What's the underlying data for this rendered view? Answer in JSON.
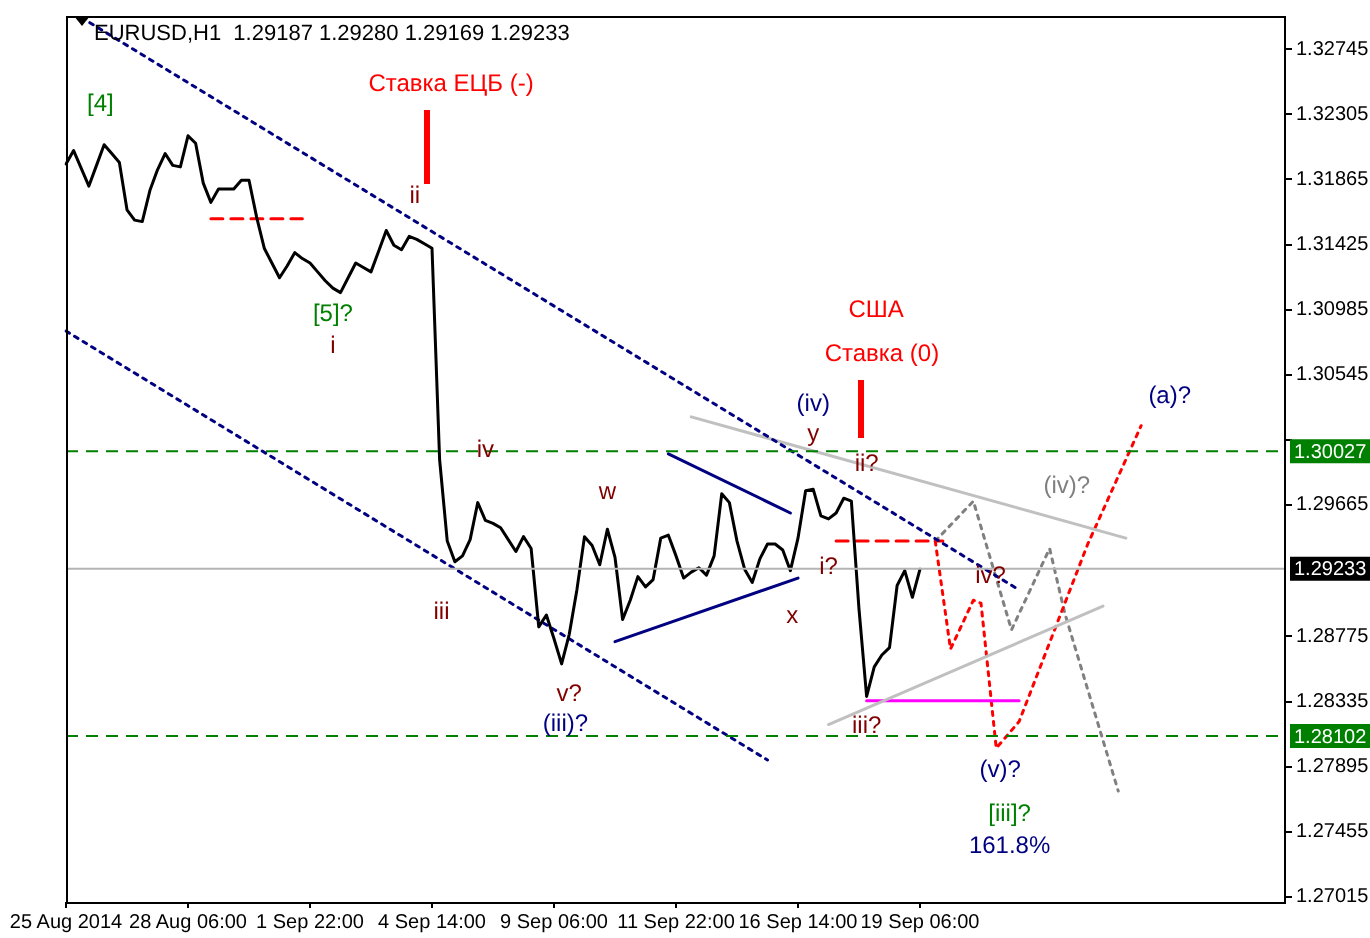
{
  "chart_data": {
    "type": "line",
    "title": "EURUSD,H1  1.29187 1.29280 1.29169 1.29233",
    "categories": [
      "25 Aug 2014",
      null,
      null,
      null,
      null,
      null,
      null,
      null,
      null,
      null,
      null,
      null,
      null,
      null,
      null,
      null,
      "28 Aug 06:00",
      null,
      null,
      null,
      null,
      null,
      null,
      null,
      null,
      null,
      null,
      null,
      null,
      null,
      null,
      null,
      "1 Sep 22:00",
      null,
      null,
      null,
      null,
      null,
      null,
      null,
      null,
      null,
      null,
      null,
      null,
      null,
      null,
      null,
      "4 Sep 14:00",
      null,
      null,
      null,
      null,
      null,
      null,
      null,
      null,
      null,
      null,
      null,
      null,
      null,
      null,
      null,
      "9 Sep 06:00",
      null,
      null,
      null,
      null,
      null,
      null,
      null,
      null,
      null,
      null,
      null,
      null,
      null,
      null,
      null,
      "11 Sep 22:00",
      null,
      null,
      null,
      null,
      null,
      null,
      null,
      null,
      null,
      null,
      null,
      null,
      null,
      null,
      null,
      "16 Sep 14:00",
      null,
      null,
      null,
      null,
      null,
      null,
      null,
      null,
      null,
      null,
      null,
      null,
      null,
      null,
      null,
      "19 Sep 06:00",
      null,
      null,
      null,
      null,
      null,
      null,
      null,
      null,
      null,
      null,
      null,
      null,
      null,
      null,
      null,
      null,
      null,
      null,
      null,
      null,
      null,
      null,
      null,
      null,
      null,
      null,
      null,
      null,
      null,
      null,
      null,
      null,
      null,
      null,
      null,
      null,
      null,
      null,
      null,
      null,
      null,
      null,
      null,
      null,
      null,
      null,
      null,
      null
    ],
    "ylim": [
      1.2698,
      1.3297
    ],
    "yticks": [
      1.27015,
      1.27455,
      1.27895,
      1.28335,
      1.28775,
      1.29665,
      {
        "value": 1.30105,
        "label": null
      },
      1.30545,
      1.30985,
      1.31425,
      1.31865,
      1.32305,
      1.32745
    ],
    "grid": false,
    "legend": false,
    "marker": "none",
    "series": [
      {
        "type": "line",
        "color": "#000000",
        "line_style": "solid",
        "values": [
          1.3197,
          1.3206,
          1.3194,
          1.3182,
          1.3196,
          1.321,
          1.3204,
          1.3198,
          1.3166,
          1.3159,
          1.3158,
          1.3179,
          1.3193,
          1.3204,
          1.3196,
          1.3195,
          1.3216,
          1.3211,
          1.3184,
          1.3171,
          1.318,
          1.318,
          1.318,
          1.3186,
          1.3186,
          1.3161,
          1.314,
          1.313,
          1.312,
          1.3128,
          1.3137,
          1.3133,
          1.313,
          1.3124,
          1.3118,
          1.3113,
          1.311,
          1.312,
          1.313,
          1.3127,
          1.3124,
          1.3138,
          1.3152,
          1.3142,
          1.3139,
          1.3148,
          1.3146,
          1.3143,
          1.314,
          1.2997,
          1.2942,
          1.2928,
          1.2932,
          1.2943,
          1.2968,
          1.2956,
          1.2954,
          1.2951,
          1.2943,
          1.2935,
          1.2945,
          1.2937,
          1.2884,
          1.2892,
          1.2876,
          1.2859,
          1.2879,
          1.2909,
          1.2945,
          1.2939,
          1.2926,
          1.295,
          1.2931,
          1.2889,
          1.2902,
          1.2918,
          1.2911,
          1.2916,
          1.2944,
          1.2946,
          1.2932,
          1.2917,
          1.2921,
          1.2924,
          1.2919,
          1.2932,
          1.2974,
          1.2968,
          1.2942,
          1.2923,
          1.2914,
          1.293,
          1.294,
          1.294,
          1.2936,
          1.2922,
          1.2944,
          1.2976,
          1.2977,
          1.2959,
          1.2957,
          1.2961,
          1.2971,
          1.2969,
          1.2896,
          1.2837,
          1.2857,
          1.2865,
          1.287,
          1.2912,
          1.2922,
          1.2904,
          1.2923,
          null,
          null,
          null,
          null,
          null,
          null,
          null,
          null,
          null,
          null,
          null,
          null,
          null,
          null,
          null,
          null,
          null,
          null,
          null,
          null,
          null,
          null,
          null,
          null,
          null,
          null,
          null,
          null,
          null,
          null,
          null,
          null,
          null,
          null,
          null,
          null,
          null,
          null,
          null,
          null,
          null,
          null,
          null,
          null,
          null,
          null,
          null,
          null
        ]
      },
      {
        "type": "line",
        "color": "#000080",
        "line_style": "dotted",
        "values": [
          null,
          null,
          1.3296,
          null,
          null,
          null,
          null,
          null,
          null,
          null,
          null,
          null,
          null,
          null,
          null,
          null,
          null,
          null,
          null,
          null,
          null,
          null,
          null,
          null,
          null,
          null,
          null,
          null,
          null,
          null,
          null,
          null,
          null,
          null,
          null,
          null,
          null,
          null,
          null,
          null,
          null,
          null,
          null,
          null,
          null,
          null,
          null,
          null,
          null,
          null,
          null,
          null,
          null,
          null,
          null,
          null,
          null,
          null,
          null,
          null,
          null,
          null,
          null,
          null,
          null,
          null,
          null,
          null,
          null,
          null,
          null,
          null,
          null,
          null,
          null,
          null,
          null,
          null,
          null,
          null,
          null,
          null,
          null,
          null,
          null,
          null,
          null,
          null,
          null,
          null,
          null,
          null,
          null,
          null,
          null,
          null,
          null,
          null,
          null,
          null,
          null,
          null,
          null,
          null,
          null,
          null,
          null,
          null,
          null,
          null,
          null,
          null,
          null,
          null,
          null,
          null,
          null,
          null,
          null,
          null,
          null,
          null,
          null,
          null,
          null,
          1.2909,
          null,
          null,
          null,
          null,
          null,
          null,
          null,
          null,
          null,
          null,
          null,
          null,
          null,
          null,
          null,
          null,
          null,
          null,
          null,
          null,
          null,
          null,
          null,
          null,
          null,
          null,
          null,
          null,
          null,
          null,
          null,
          null,
          null,
          null,
          null
        ]
      },
      {
        "type": "line",
        "color": "#000080",
        "line_style": "dotted",
        "values": [
          1.3084,
          null,
          null,
          null,
          null,
          null,
          null,
          null,
          null,
          null,
          null,
          null,
          null,
          null,
          null,
          null,
          null,
          null,
          null,
          null,
          null,
          null,
          null,
          null,
          null,
          null,
          null,
          null,
          null,
          null,
          null,
          null,
          null,
          null,
          null,
          null,
          null,
          null,
          null,
          null,
          null,
          null,
          null,
          null,
          null,
          null,
          null,
          null,
          null,
          null,
          null,
          null,
          null,
          null,
          null,
          null,
          null,
          null,
          null,
          null,
          null,
          null,
          null,
          null,
          null,
          null,
          null,
          null,
          null,
          null,
          null,
          null,
          null,
          null,
          null,
          null,
          null,
          null,
          null,
          null,
          null,
          null,
          null,
          null,
          null,
          null,
          null,
          null,
          null,
          null,
          null,
          null,
          1.2794,
          null,
          null,
          null,
          null,
          null,
          null,
          null,
          null,
          null,
          null,
          null,
          null,
          null,
          null,
          null,
          null,
          null,
          null,
          null,
          null,
          null,
          null,
          null,
          null,
          null,
          null,
          null,
          null,
          null,
          null,
          null,
          null,
          null,
          null,
          null,
          null,
          null,
          null,
          null,
          null,
          null,
          null,
          null,
          null,
          null,
          null,
          null,
          null,
          null,
          null,
          null,
          null,
          null,
          null,
          null,
          null,
          null,
          null,
          null,
          null,
          null,
          null,
          null,
          null,
          null,
          null,
          null,
          null
        ]
      },
      {
        "type": "line",
        "color": "#000080",
        "line_style": "solid",
        "values": [
          null,
          null,
          null,
          null,
          null,
          null,
          null,
          null,
          null,
          null,
          null,
          null,
          null,
          null,
          null,
          null,
          null,
          null,
          null,
          null,
          null,
          null,
          null,
          null,
          null,
          null,
          null,
          null,
          null,
          null,
          null,
          null,
          null,
          null,
          null,
          null,
          null,
          null,
          null,
          null,
          null,
          null,
          null,
          null,
          null,
          null,
          null,
          null,
          null,
          null,
          null,
          null,
          null,
          null,
          null,
          null,
          null,
          null,
          null,
          null,
          null,
          null,
          null,
          null,
          null,
          null,
          null,
          null,
          null,
          null,
          null,
          null,
          null,
          null,
          null,
          null,
          null,
          null,
          null,
          1.3001,
          null,
          null,
          null,
          null,
          null,
          null,
          null,
          null,
          null,
          null,
          null,
          null,
          null,
          null,
          null,
          1.2961,
          null,
          null,
          null,
          null,
          null,
          null,
          null,
          null,
          null,
          null,
          null,
          null,
          null,
          null,
          null,
          null,
          null,
          null,
          null,
          null,
          null,
          null,
          null,
          null,
          null,
          null,
          null,
          null,
          null,
          null,
          null,
          null,
          null,
          null,
          null,
          null,
          null,
          null,
          null,
          null,
          null,
          null,
          null,
          null,
          null,
          null,
          null,
          null,
          null,
          null,
          null,
          null,
          null,
          null,
          null,
          null,
          null,
          null,
          null,
          null,
          null,
          null,
          null,
          null,
          null
        ]
      },
      {
        "type": "line",
        "color": "#000080",
        "line_style": "solid",
        "values": [
          null,
          null,
          null,
          null,
          null,
          null,
          null,
          null,
          null,
          null,
          null,
          null,
          null,
          null,
          null,
          null,
          null,
          null,
          null,
          null,
          null,
          null,
          null,
          null,
          null,
          null,
          null,
          null,
          null,
          null,
          null,
          null,
          null,
          null,
          null,
          null,
          null,
          null,
          null,
          null,
          null,
          null,
          null,
          null,
          null,
          null,
          null,
          null,
          null,
          null,
          null,
          null,
          null,
          null,
          null,
          null,
          null,
          null,
          null,
          null,
          null,
          null,
          null,
          null,
          null,
          null,
          null,
          null,
          null,
          null,
          null,
          null,
          1.2874,
          null,
          null,
          null,
          null,
          null,
          null,
          null,
          null,
          null,
          null,
          null,
          null,
          null,
          null,
          null,
          null,
          null,
          null,
          null,
          null,
          null,
          null,
          null,
          1.2917,
          null,
          null,
          null,
          null,
          null,
          null,
          null,
          null,
          null,
          null,
          null,
          null,
          null,
          null,
          null,
          null,
          null,
          null,
          null,
          null,
          null,
          null,
          null,
          null,
          null,
          null,
          null,
          null,
          null,
          null,
          null,
          null,
          null,
          null,
          null,
          null,
          null,
          null,
          null,
          null,
          null,
          null,
          null,
          null,
          null,
          null,
          null,
          null,
          null,
          null,
          null,
          null,
          null,
          null,
          null,
          null,
          null,
          null,
          null,
          null,
          null,
          null,
          null,
          null
        ]
      },
      {
        "type": "line",
        "color": "#c0c0c0",
        "line_style": "solid",
        "values": [
          null,
          null,
          null,
          null,
          null,
          null,
          null,
          null,
          null,
          null,
          null,
          null,
          null,
          null,
          null,
          null,
          null,
          null,
          null,
          null,
          null,
          null,
          null,
          null,
          null,
          null,
          null,
          null,
          null,
          null,
          null,
          null,
          null,
          null,
          null,
          null,
          null,
          null,
          null,
          null,
          null,
          null,
          null,
          null,
          null,
          null,
          null,
          null,
          null,
          null,
          null,
          null,
          null,
          null,
          null,
          null,
          null,
          null,
          null,
          null,
          null,
          null,
          null,
          null,
          null,
          null,
          null,
          null,
          null,
          null,
          null,
          null,
          null,
          null,
          null,
          null,
          null,
          null,
          null,
          null,
          null,
          null,
          1.3026,
          null,
          null,
          null,
          null,
          null,
          null,
          null,
          null,
          null,
          null,
          null,
          null,
          null,
          null,
          null,
          null,
          null,
          null,
          null,
          null,
          null,
          null,
          null,
          null,
          null,
          null,
          null,
          null,
          null,
          null,
          null,
          null,
          null,
          null,
          null,
          null,
          null,
          null,
          null,
          null,
          null,
          null,
          null,
          null,
          null,
          null,
          null,
          null,
          null,
          null,
          null,
          null,
          null,
          null,
          null,
          null,
          1.2944,
          null,
          null,
          null,
          null,
          null,
          null,
          null,
          null,
          null,
          null,
          null,
          null,
          null,
          null,
          null,
          null,
          null,
          null,
          null,
          null,
          null
        ]
      },
      {
        "type": "line",
        "color": "#c0c0c0",
        "line_style": "solid",
        "values": [
          null,
          null,
          null,
          null,
          null,
          null,
          null,
          null,
          null,
          null,
          null,
          null,
          null,
          null,
          null,
          null,
          null,
          null,
          null,
          null,
          null,
          null,
          null,
          null,
          null,
          null,
          null,
          null,
          null,
          null,
          null,
          null,
          null,
          null,
          null,
          null,
          null,
          null,
          null,
          null,
          null,
          null,
          null,
          null,
          null,
          null,
          null,
          null,
          null,
          null,
          null,
          null,
          null,
          null,
          null,
          null,
          null,
          null,
          null,
          null,
          null,
          null,
          null,
          null,
          null,
          null,
          null,
          null,
          null,
          null,
          null,
          null,
          null,
          null,
          null,
          null,
          null,
          null,
          null,
          null,
          null,
          null,
          null,
          null,
          null,
          null,
          null,
          null,
          null,
          null,
          null,
          null,
          null,
          null,
          null,
          null,
          null,
          null,
          null,
          null,
          1.2818,
          null,
          null,
          null,
          null,
          null,
          null,
          null,
          null,
          null,
          null,
          null,
          null,
          null,
          null,
          null,
          null,
          null,
          null,
          null,
          null,
          null,
          null,
          null,
          null,
          null,
          null,
          null,
          null,
          null,
          null,
          null,
          null,
          null,
          null,
          null,
          1.2898,
          null,
          null,
          null,
          null,
          null,
          null,
          null,
          null,
          null,
          null,
          null,
          null,
          null,
          null,
          null,
          null,
          null,
          null,
          null,
          null,
          null,
          null,
          null,
          null
        ]
      },
      {
        "type": "line",
        "color": "#ff0000",
        "line_style": "dashed",
        "values": [
          null,
          null,
          null,
          null,
          null,
          null,
          null,
          null,
          null,
          null,
          null,
          null,
          null,
          null,
          null,
          null,
          null,
          null,
          null,
          1.316,
          null,
          null,
          null,
          null,
          null,
          null,
          null,
          null,
          null,
          null,
          null,
          1.316,
          null,
          null,
          null,
          null,
          null,
          null,
          null,
          null,
          null,
          null,
          null,
          null,
          null,
          null,
          null,
          null,
          null,
          null,
          null,
          null,
          null,
          null,
          null,
          null,
          null,
          null,
          null,
          null,
          null,
          null,
          null,
          null,
          null,
          null,
          null,
          null,
          null,
          null,
          null,
          null,
          null,
          null,
          null,
          null,
          null,
          null,
          null,
          null,
          null,
          null,
          null,
          null,
          null,
          null,
          null,
          null,
          null,
          null,
          null,
          null,
          null,
          null,
          null,
          null,
          null,
          null,
          null,
          null,
          null,
          null,
          null,
          null,
          null,
          null,
          null,
          null,
          null,
          null,
          null,
          null,
          null,
          null,
          null,
          null,
          null,
          null,
          null,
          null,
          null,
          null,
          null,
          null,
          null,
          null,
          null,
          null,
          null,
          null,
          null,
          null,
          null,
          null,
          null,
          null,
          null,
          null,
          null,
          null,
          null,
          null,
          null,
          null,
          null,
          null,
          null,
          null,
          null,
          null,
          null,
          null,
          null,
          null,
          null,
          null,
          null,
          null,
          null,
          null,
          null
        ]
      },
      {
        "type": "line",
        "color": "#ff0000",
        "line_style": "dashed",
        "values": [
          null,
          null,
          null,
          null,
          null,
          null,
          null,
          null,
          null,
          null,
          null,
          null,
          null,
          null,
          null,
          null,
          null,
          null,
          null,
          null,
          null,
          null,
          null,
          null,
          null,
          null,
          null,
          null,
          null,
          null,
          null,
          null,
          null,
          null,
          null,
          null,
          null,
          null,
          null,
          null,
          null,
          null,
          null,
          null,
          null,
          null,
          null,
          null,
          null,
          null,
          null,
          null,
          null,
          null,
          null,
          null,
          null,
          null,
          null,
          null,
          null,
          null,
          null,
          null,
          null,
          null,
          null,
          null,
          null,
          null,
          null,
          null,
          null,
          null,
          null,
          null,
          null,
          null,
          null,
          null,
          null,
          null,
          null,
          null,
          null,
          null,
          null,
          null,
          null,
          null,
          null,
          null,
          null,
          null,
          null,
          null,
          null,
          null,
          null,
          null,
          null,
          1.2942,
          null,
          null,
          null,
          null,
          null,
          null,
          null,
          null,
          null,
          null,
          null,
          null,
          null,
          1.2942,
          null,
          null,
          null,
          null,
          null,
          null,
          null,
          null,
          null,
          null,
          null,
          null,
          null,
          null,
          null,
          null,
          null,
          null,
          null,
          null,
          null,
          null,
          null,
          null,
          null,
          null,
          null,
          null,
          null,
          null,
          null,
          null,
          null,
          null,
          null,
          null,
          null,
          null,
          null,
          null,
          null,
          null,
          null,
          null,
          null
        ]
      },
      {
        "type": "line",
        "color": "#ff00ff",
        "line_style": "solid",
        "values": [
          null,
          null,
          null,
          null,
          null,
          null,
          null,
          null,
          null,
          null,
          null,
          null,
          null,
          null,
          null,
          null,
          null,
          null,
          null,
          null,
          null,
          null,
          null,
          null,
          null,
          null,
          null,
          null,
          null,
          null,
          null,
          null,
          null,
          null,
          null,
          null,
          null,
          null,
          null,
          null,
          null,
          null,
          null,
          null,
          null,
          null,
          null,
          null,
          null,
          null,
          null,
          null,
          null,
          null,
          null,
          null,
          null,
          null,
          null,
          null,
          null,
          null,
          null,
          null,
          null,
          null,
          null,
          null,
          null,
          null,
          null,
          null,
          null,
          null,
          null,
          null,
          null,
          null,
          null,
          null,
          null,
          null,
          null,
          null,
          null,
          null,
          null,
          null,
          null,
          null,
          null,
          null,
          null,
          null,
          null,
          null,
          null,
          null,
          null,
          null,
          null,
          null,
          null,
          null,
          null,
          1.2834,
          null,
          null,
          null,
          null,
          null,
          null,
          null,
          null,
          null,
          null,
          null,
          null,
          null,
          null,
          null,
          null,
          null,
          null,
          null,
          1.2834,
          null,
          null,
          null,
          null,
          null,
          null,
          null,
          null,
          null,
          null,
          null,
          null,
          null,
          null,
          null,
          null,
          null,
          null,
          null,
          null,
          null,
          null,
          null,
          null,
          null,
          null,
          null,
          null,
          null,
          null,
          null,
          null,
          null,
          null,
          null
        ]
      },
      {
        "type": "line",
        "color": "#ff0000",
        "line_style": "dotted",
        "values": [
          null,
          null,
          null,
          null,
          null,
          null,
          null,
          null,
          null,
          null,
          null,
          null,
          null,
          null,
          null,
          null,
          null,
          null,
          null,
          null,
          null,
          null,
          null,
          null,
          null,
          null,
          null,
          null,
          null,
          null,
          null,
          null,
          null,
          null,
          null,
          null,
          null,
          null,
          null,
          null,
          null,
          null,
          null,
          null,
          null,
          null,
          null,
          null,
          null,
          null,
          null,
          null,
          null,
          null,
          null,
          null,
          null,
          null,
          null,
          null,
          null,
          null,
          null,
          null,
          null,
          null,
          null,
          null,
          null,
          null,
          null,
          null,
          null,
          null,
          null,
          null,
          null,
          null,
          null,
          null,
          null,
          null,
          null,
          null,
          null,
          null,
          null,
          null,
          null,
          null,
          null,
          null,
          null,
          null,
          null,
          null,
          null,
          null,
          null,
          null,
          null,
          null,
          null,
          null,
          null,
          null,
          null,
          null,
          null,
          null,
          null,
          null,
          null,
          null,
          1.2942,
          null,
          1.2869,
          null,
          null,
          1.2902,
          1.29,
          null,
          1.2802,
          null,
          null,
          1.282,
          null,
          null,
          null,
          null,
          null,
          null,
          null,
          null,
          1.294,
          null,
          null,
          null,
          null,
          null,
          null,
          1.302,
          null,
          null,
          null,
          null,
          null,
          null,
          null,
          null,
          null,
          null,
          null,
          null,
          null,
          null,
          null,
          null,
          null,
          null,
          null
        ]
      },
      {
        "type": "line",
        "color": "#808080",
        "line_style": "dotted",
        "values": [
          null,
          null,
          null,
          null,
          null,
          null,
          null,
          null,
          null,
          null,
          null,
          null,
          null,
          null,
          null,
          null,
          null,
          null,
          null,
          null,
          null,
          null,
          null,
          null,
          null,
          null,
          null,
          null,
          null,
          null,
          null,
          null,
          null,
          null,
          null,
          null,
          null,
          null,
          null,
          null,
          null,
          null,
          null,
          null,
          null,
          null,
          null,
          null,
          null,
          null,
          null,
          null,
          null,
          null,
          null,
          null,
          null,
          null,
          null,
          null,
          null,
          null,
          null,
          null,
          null,
          null,
          null,
          null,
          null,
          null,
          null,
          null,
          null,
          null,
          null,
          null,
          null,
          null,
          null,
          null,
          null,
          null,
          null,
          null,
          null,
          null,
          null,
          null,
          null,
          null,
          null,
          null,
          null,
          null,
          null,
          null,
          null,
          null,
          null,
          null,
          null,
          null,
          null,
          null,
          null,
          null,
          null,
          null,
          null,
          null,
          null,
          null,
          null,
          null,
          1.2942,
          null,
          null,
          null,
          null,
          1.2969,
          null,
          null,
          null,
          null,
          1.2882,
          null,
          null,
          null,
          null,
          1.2937,
          null,
          1.2893,
          null,
          null,
          null,
          null,
          null,
          null,
          1.2773,
          null,
          null,
          null,
          null,
          null,
          null,
          null,
          null,
          null,
          null,
          null,
          null,
          null,
          null,
          null,
          null,
          null,
          null,
          null,
          null,
          null,
          null
        ]
      }
    ],
    "ref_lines": [
      {
        "axis": "y",
        "value": 1.30027,
        "label": "1.30027",
        "color": "#008000",
        "line_style": "dashed"
      },
      {
        "axis": "y",
        "value": 1.28102,
        "label": "1.28102",
        "color": "#008000",
        "line_style": "dashed"
      },
      {
        "axis": "y",
        "value": 1.29233,
        "label": "1.29233",
        "color": "#b4b4b4",
        "line_style": "solid"
      }
    ],
    "annotations": [
      "[4]",
      "Ставка ЕЦБ (-)",
      "ii",
      "[5]?",
      "i",
      "iv",
      "iii",
      "w",
      "v?",
      "(iii)?",
      "x",
      "(iv)",
      "y",
      "США",
      "Ставка (0)",
      "ii?",
      {
        "text": "i?",
        "y": 1.2942
      },
      "iv?",
      {
        "text": "iii?",
        "y": 1.2834
      },
      "(v)?",
      "[iii]?",
      "161.8%",
      "(iv)?",
      "(a)?"
    ]
  }
}
